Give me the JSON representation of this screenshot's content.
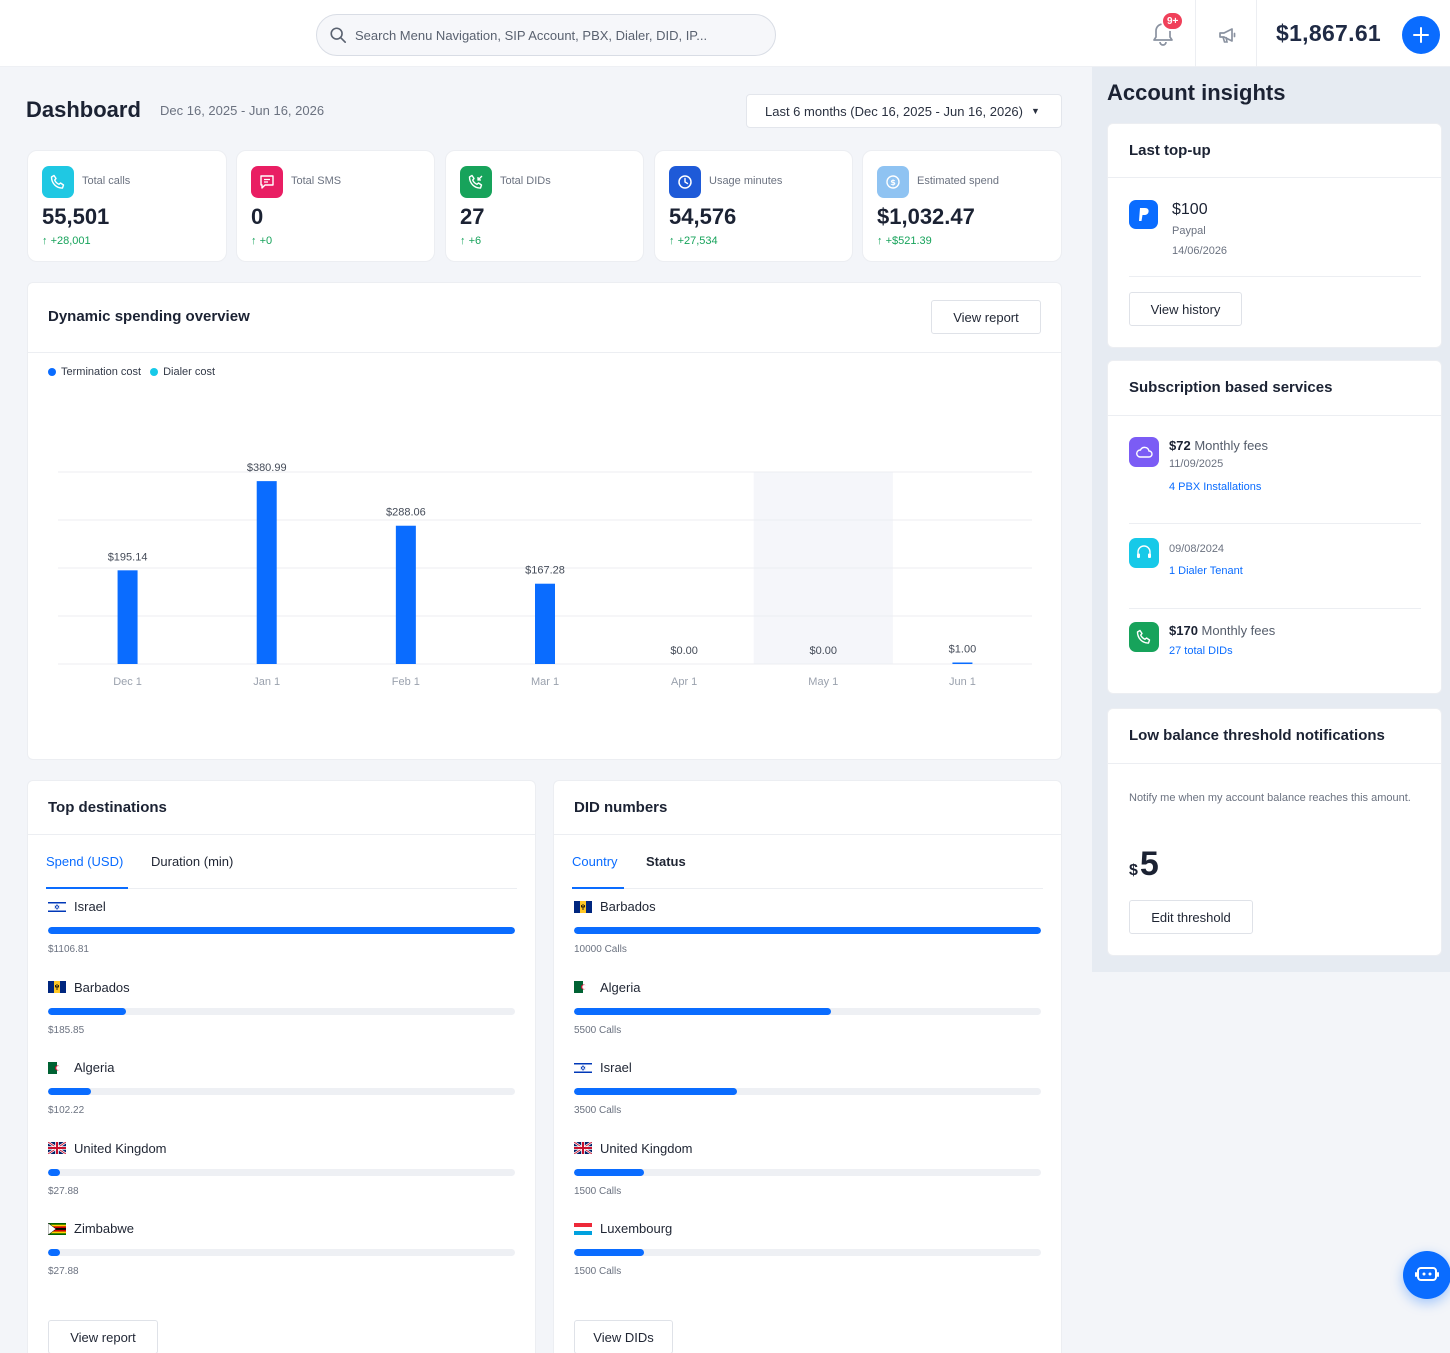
{
  "topbar": {
    "search_placeholder": "Search Menu Navigation, SIP Account, PBX, Dialer, DID, IP...",
    "notification_badge": "9+",
    "balance": "$1,867.61"
  },
  "header": {
    "title": "Dashboard",
    "date_range": "Dec 16, 2025 - Jun 16, 2026",
    "range_select": "Last 6 months (Dec 16, 2025 - Jun 16, 2026)"
  },
  "stats": [
    {
      "label": "Total calls",
      "value": "55,501",
      "delta": "+28,001",
      "icon": "phone-icon",
      "color": "#1fc8e3"
    },
    {
      "label": "Total SMS",
      "value": "0",
      "delta": "+0",
      "icon": "message-icon",
      "color": "#e91e63"
    },
    {
      "label": "Total DIDs",
      "value": "27",
      "delta": "+6",
      "icon": "incoming-call-icon",
      "color": "#17a35b"
    },
    {
      "label": "Usage minutes",
      "value": "54,576",
      "delta": "+27,534",
      "icon": "clock-icon",
      "color": "#1e5ad8"
    },
    {
      "label": "Estimated spend",
      "value": "$1,032.47",
      "delta": "+$521.39",
      "icon": "dollar-icon",
      "color": "#8fc3f2"
    }
  ],
  "spending": {
    "title": "Dynamic spending overview",
    "view_report": "View report",
    "legend": [
      {
        "name": "Termination cost",
        "color": "#0a6cff"
      },
      {
        "name": "Dialer cost",
        "color": "#17c9e8"
      }
    ]
  },
  "chart_data": {
    "type": "bar",
    "categories": [
      "Dec 1",
      "Jan 1",
      "Feb 1",
      "Mar 1",
      "Apr 1",
      "May 1",
      "Jun 1"
    ],
    "series": [
      {
        "name": "Termination cost",
        "values": [
          195.14,
          380.99,
          288.06,
          167.28,
          0,
          0,
          1.0
        ]
      }
    ],
    "data_labels": [
      "$195.14",
      "$380.99",
      "$288.06",
      "$167.28",
      "$0.00",
      "$0.00",
      "$1.00"
    ],
    "highlighted_category": "May 1",
    "ylim": [
      0,
      400
    ],
    "grid": true,
    "legend_position": "top-left",
    "colors": {
      "bar": "#0a6cff"
    }
  },
  "top_destinations": {
    "title": "Top destinations",
    "tabs": [
      "Spend (USD)",
      "Duration (min)"
    ],
    "items": [
      {
        "name": "Israel",
        "flag": "israel",
        "value": "$1106.81",
        "fraction": 1.0
      },
      {
        "name": "Barbados",
        "flag": "barbados",
        "value": "$185.85",
        "fraction": 0.168
      },
      {
        "name": "Algeria",
        "flag": "algeria",
        "value": "$102.22",
        "fraction": 0.092
      },
      {
        "name": "United Kingdom",
        "flag": "uk",
        "value": "$27.88",
        "fraction": 0.025
      },
      {
        "name": "Zimbabwe",
        "flag": "zimbabwe",
        "value": "$27.88",
        "fraction": 0.025
      }
    ],
    "button": "View report"
  },
  "did_numbers": {
    "title": "DID numbers",
    "tabs": [
      "Country",
      "Status"
    ],
    "items": [
      {
        "name": "Barbados",
        "flag": "barbados",
        "value": "10000 Calls",
        "fraction": 1.0
      },
      {
        "name": "Algeria",
        "flag": "algeria",
        "value": "5500 Calls",
        "fraction": 0.55
      },
      {
        "name": "Israel",
        "flag": "israel",
        "value": "3500 Calls",
        "fraction": 0.35
      },
      {
        "name": "United Kingdom",
        "flag": "uk",
        "value": "1500 Calls",
        "fraction": 0.15
      },
      {
        "name": "Luxembourg",
        "flag": "luxembourg",
        "value": "1500 Calls",
        "fraction": 0.15
      }
    ],
    "button": "View DIDs"
  },
  "insights": {
    "title": "Account insights",
    "last_topup": {
      "title": "Last top-up",
      "amount": "$100",
      "method": "Paypal",
      "date": "14/06/2026",
      "button": "View history"
    },
    "subscriptions": {
      "title": "Subscription based services",
      "items": [
        {
          "amount": "$72",
          "suffix": "Monthly fees",
          "date": "11/09/2025",
          "link": "4 PBX Installations",
          "icon": "cloud-icon",
          "color": "#7b5cf5"
        },
        {
          "amount": "",
          "suffix": "",
          "date": "09/08/2024",
          "link": "1 Dialer Tenant",
          "icon": "headset-icon",
          "color": "#17c9e8"
        },
        {
          "amount": "$170",
          "suffix": "Monthly fees",
          "date": "",
          "link": "27 total DIDs",
          "icon": "phone-icon",
          "color": "#17a35b"
        }
      ]
    },
    "threshold": {
      "title": "Low balance threshold notifications",
      "description": "Notify me when my account balance reaches this amount.",
      "currency": "$",
      "value": "5",
      "button": "Edit threshold"
    }
  }
}
